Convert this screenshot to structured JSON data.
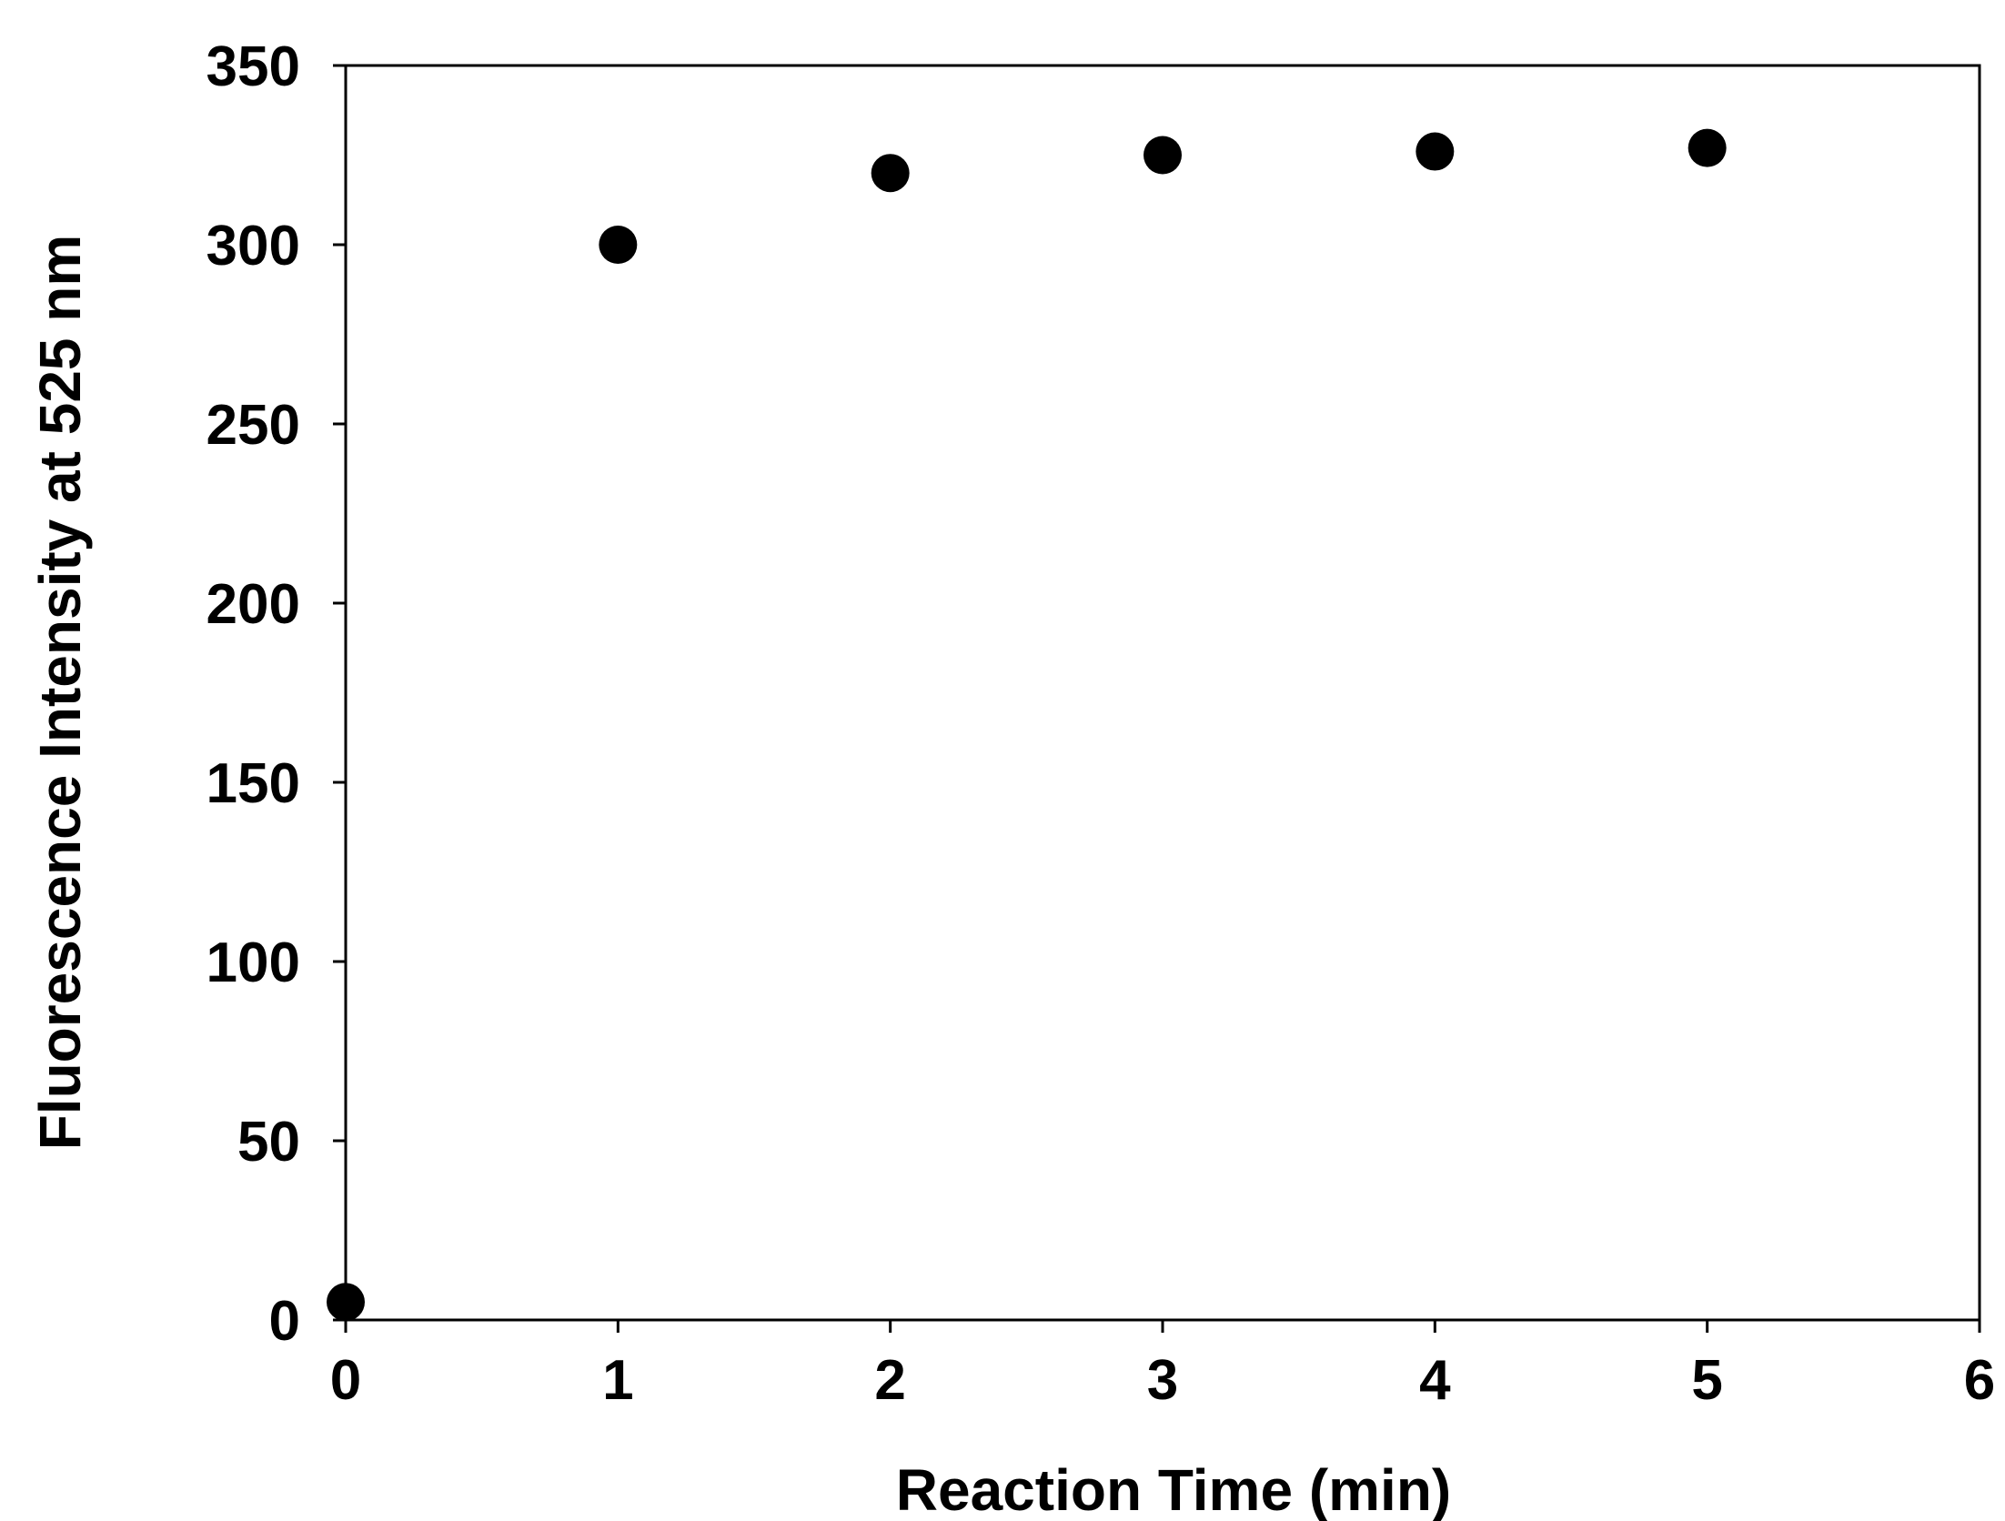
{
  "chart_data": {
    "type": "scatter",
    "title": "",
    "xlabel": "Reaction Time (min)",
    "ylabel": "Fluorescence Intensity at 525 nm",
    "xlim": [
      0,
      6
    ],
    "ylim": [
      0,
      350
    ],
    "x_ticks": [
      "0",
      "1",
      "2",
      "3",
      "4",
      "5",
      "6"
    ],
    "y_ticks": [
      "0",
      "50",
      "100",
      "150",
      "200",
      "250",
      "300",
      "350"
    ],
    "grid": false,
    "legend": "none",
    "marker_color": "#000000",
    "series": [
      {
        "x": [
          0,
          1,
          2,
          3,
          4,
          5
        ],
        "y": [
          5,
          300,
          320,
          325,
          326,
          327
        ]
      }
    ]
  }
}
